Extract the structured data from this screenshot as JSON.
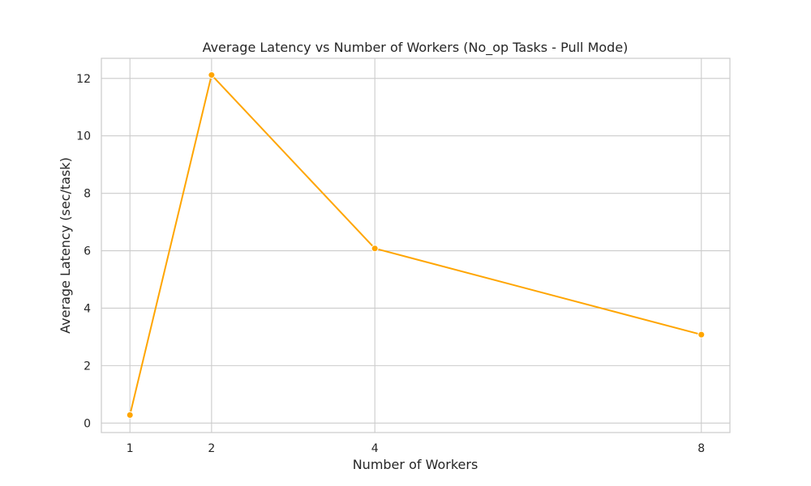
{
  "chart_data": {
    "type": "line",
    "title": "Average Latency vs Number of Workers (No_op Tasks - Pull Mode)",
    "xlabel": "Number of Workers",
    "ylabel": "Average Latency (sec/task)",
    "x": [
      1,
      2,
      4,
      8
    ],
    "xticks": [
      1,
      2,
      4,
      8
    ],
    "xtick_labels": [
      "1",
      "2",
      "4",
      "8"
    ],
    "yticks": [
      0,
      2,
      4,
      6,
      8,
      10,
      12
    ],
    "ytick_labels": [
      "0",
      "2",
      "4",
      "6",
      "8",
      "10",
      "12"
    ],
    "xlim": [
      0.65,
      8.35
    ],
    "ylim": [
      -0.33,
      12.7
    ],
    "grid": true,
    "series": [
      {
        "values": [
          0.28,
          12.12,
          6.08,
          3.08
        ],
        "color": "#FFA500",
        "marker": "circle"
      }
    ]
  }
}
